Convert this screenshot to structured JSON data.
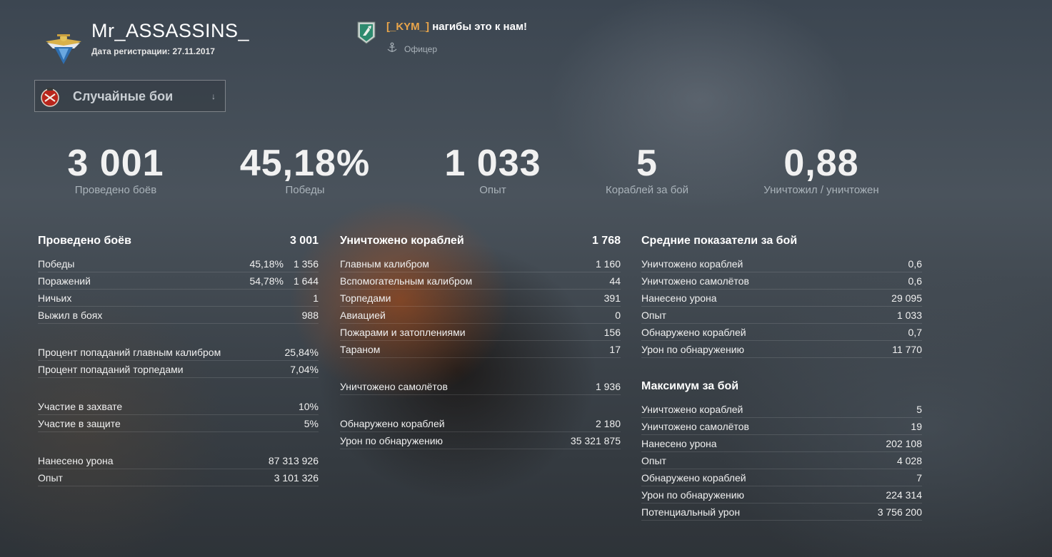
{
  "header": {
    "player_name": "Mr_ASSASSINS_",
    "reg_label": "Дата регистрации:",
    "reg_date": "27.11.2017",
    "clan_tag": "[_KYM_]",
    "clan_motto": "нагибы это к нам!",
    "clan_role": "Офицер",
    "clan_tag_color": "#e9a54a"
  },
  "mode_select": {
    "selected": "Случайные бои",
    "icon": "random-battles-icon"
  },
  "summary": [
    {
      "value": "3 001",
      "label": "Проведено боёв"
    },
    {
      "value": "45,18%",
      "label": "Победы"
    },
    {
      "value": "1 033",
      "label": "Опыт"
    },
    {
      "value": "5",
      "label": "Кораблей за бой"
    },
    {
      "value": "0,88",
      "label": "Уничтожил / уничтожен"
    }
  ],
  "battles": {
    "title": "Проведено боёв",
    "total": "3 001",
    "results": [
      {
        "label": "Победы",
        "pct": "45,18%",
        "value": "1 356"
      },
      {
        "label": "Поражений",
        "pct": "54,78%",
        "value": "1 644"
      },
      {
        "label": "Ничьих",
        "pct": "",
        "value": "1"
      },
      {
        "label": "Выжил в боях",
        "pct": "",
        "value": "988"
      }
    ],
    "accuracy": [
      {
        "label": "Процент попаданий главным калибром",
        "value": "25,84%"
      },
      {
        "label": "Процент попаданий торпедами",
        "value": "7,04%"
      }
    ],
    "base": [
      {
        "label": "Участие в захвате",
        "value": "10%"
      },
      {
        "label": "Участие в защите",
        "value": "5%"
      }
    ],
    "totals": [
      {
        "label": "Нанесено урона",
        "value": "87 313 926"
      },
      {
        "label": "Опыт",
        "value": "3 101 326"
      }
    ]
  },
  "kills": {
    "title": "Уничтожено кораблей",
    "total": "1 768",
    "by_weapon": [
      {
        "label": "Главным калибром",
        "value": "1 160"
      },
      {
        "label": "Вспомогательным калибром",
        "value": "44"
      },
      {
        "label": "Торпедами",
        "value": "391"
      },
      {
        "label": "Авиацией",
        "value": "0"
      },
      {
        "label": "Пожарами и затоплениями",
        "value": "156"
      },
      {
        "label": "Тараном",
        "value": "17"
      }
    ],
    "planes": [
      {
        "label": "Уничтожено самолётов",
        "value": "1 936"
      }
    ],
    "spotting": [
      {
        "label": "Обнаружено кораблей",
        "value": "2 180"
      },
      {
        "label": "Урон по обнаружению",
        "value": "35 321 875"
      }
    ]
  },
  "average": {
    "title": "Средние показатели за бой",
    "rows": [
      {
        "label": "Уничтожено кораблей",
        "value": "0,6"
      },
      {
        "label": "Уничтожено самолётов",
        "value": "0,6"
      },
      {
        "label": "Нанесено урона",
        "value": "29 095"
      },
      {
        "label": "Опыт",
        "value": "1 033"
      },
      {
        "label": "Обнаружено кораблей",
        "value": "0,7"
      },
      {
        "label": "Урон по обнаружению",
        "value": "11 770"
      }
    ]
  },
  "maximum": {
    "title": "Максимум за бой",
    "rows": [
      {
        "label": "Уничтожено кораблей",
        "value": "5"
      },
      {
        "label": "Уничтожено самолётов",
        "value": "19"
      },
      {
        "label": "Нанесено урона",
        "value": "202 108"
      },
      {
        "label": "Опыт",
        "value": "4 028"
      },
      {
        "label": "Обнаружено кораблей",
        "value": "7"
      },
      {
        "label": "Урон по обнаружению",
        "value": "224 314"
      },
      {
        "label": "Потенциальный урон",
        "value": "3 756 200"
      }
    ]
  }
}
